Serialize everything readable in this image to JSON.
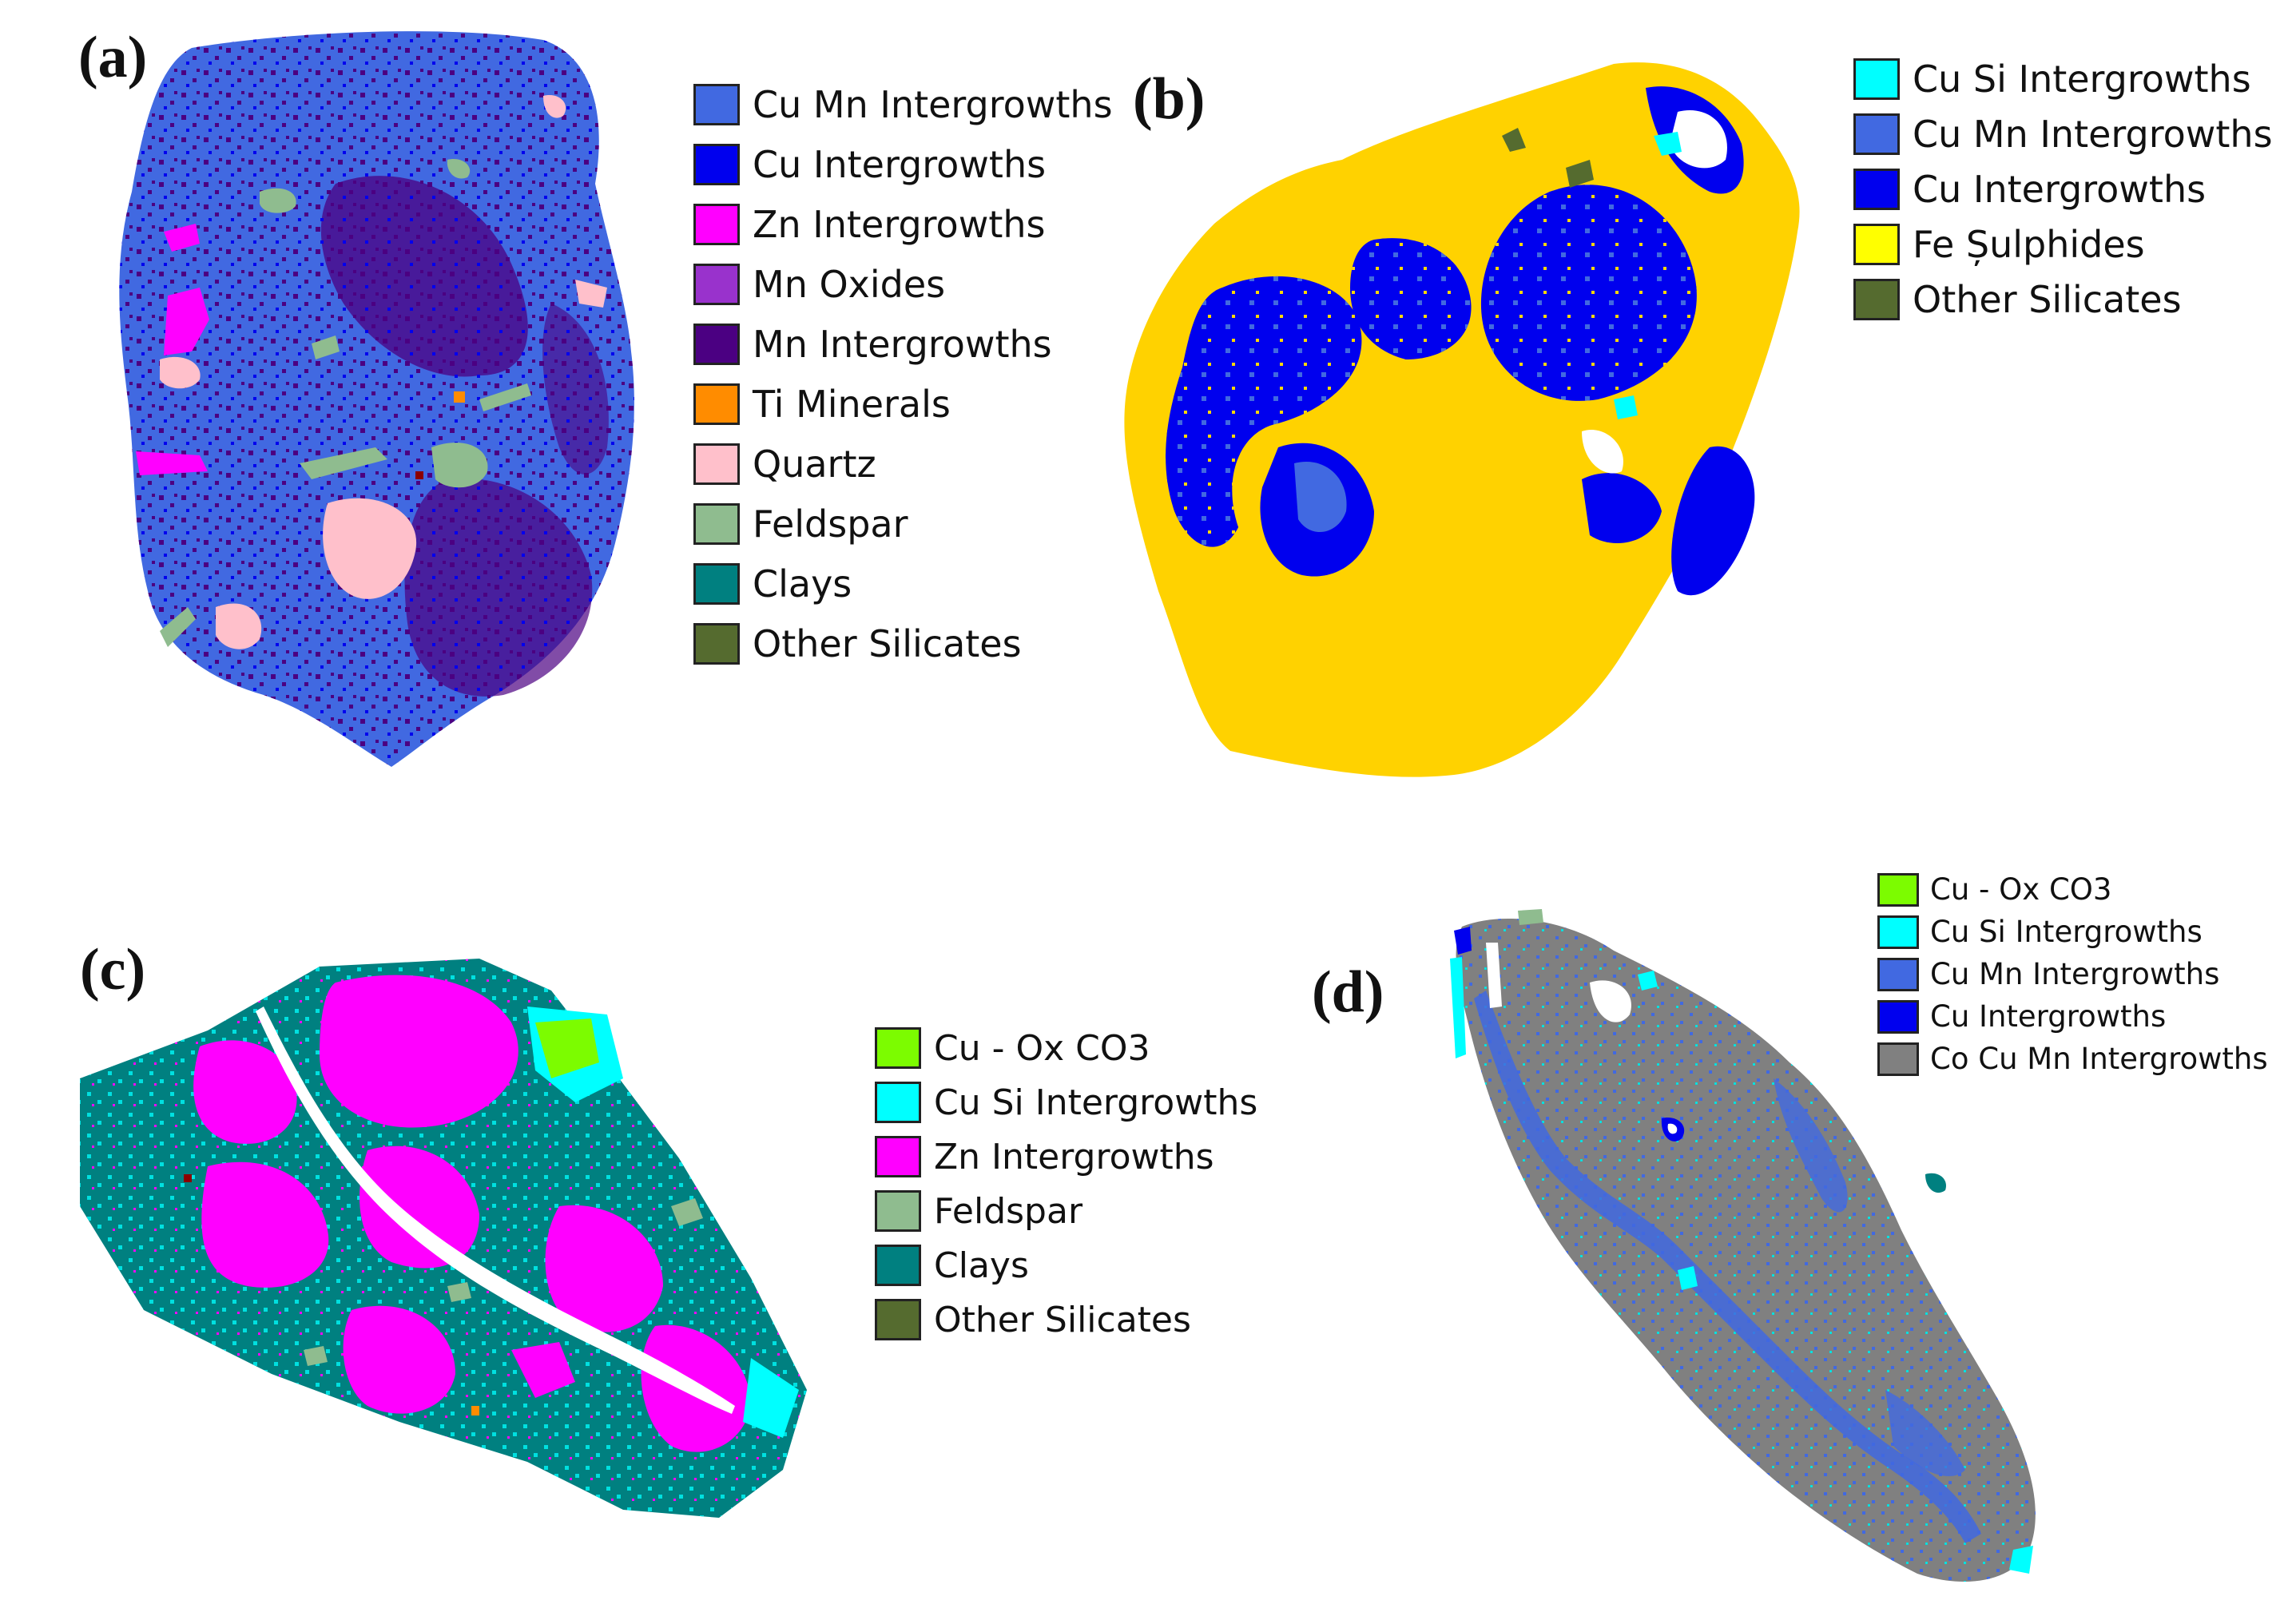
{
  "panels": [
    {
      "label": "(a)",
      "legend": [
        {
          "name": "Cu Mn Intergrowths",
          "color": "#4169e1"
        },
        {
          "name": "Cu Intergrowths",
          "color": "#0000ee"
        },
        {
          "name": "Zn Intergrowths",
          "color": "#ff00ff"
        },
        {
          "name": "Mn Oxides",
          "color": "#9932cc"
        },
        {
          "name": "Mn Intergrowths",
          "color": "#4b0082"
        },
        {
          "name": "Ti Minerals",
          "color": "#ff8c00"
        },
        {
          "name": "Quartz",
          "color": "#ffc0cb"
        },
        {
          "name": "Feldspar",
          "color": "#8fbc8f"
        },
        {
          "name": "Clays",
          "color": "#008080"
        },
        {
          "name": "Other Silicates",
          "color": "#556b2f"
        }
      ]
    },
    {
      "label": "(b)",
      "legend": [
        {
          "name": "Cu Si Intergrowths",
          "color": "#00ffff"
        },
        {
          "name": "Cu Mn Intergrowths",
          "color": "#4169e1"
        },
        {
          "name": "Cu Intergrowths",
          "color": "#0000ee"
        },
        {
          "name": "Fe Șulphides",
          "color": "#ffff00"
        },
        {
          "name": "Other Silicates",
          "color": "#556b2f"
        }
      ]
    },
    {
      "label": "(c)",
      "legend": [
        {
          "name": "Cu - Ox CO3",
          "color": "#7cfc00"
        },
        {
          "name": "Cu Si Intergrowths",
          "color": "#00ffff"
        },
        {
          "name": "Zn Intergrowths",
          "color": "#ff00ff"
        },
        {
          "name": "Feldspar",
          "color": "#8fbc8f"
        },
        {
          "name": "Clays",
          "color": "#008080"
        },
        {
          "name": "Other Silicates",
          "color": "#556b2f"
        }
      ]
    },
    {
      "label": "(d)",
      "legend": [
        {
          "name": "Cu - Ox CO3",
          "color": "#7cfc00"
        },
        {
          "name": "Cu Si Intergrowths",
          "color": "#00ffff"
        },
        {
          "name": "Cu Mn Intergrowths",
          "color": "#4169e1"
        },
        {
          "name": "Cu Intergrowths",
          "color": "#0000ee"
        },
        {
          "name": "Co Cu Mn Intergrowths",
          "color": "#808080"
        }
      ]
    }
  ]
}
